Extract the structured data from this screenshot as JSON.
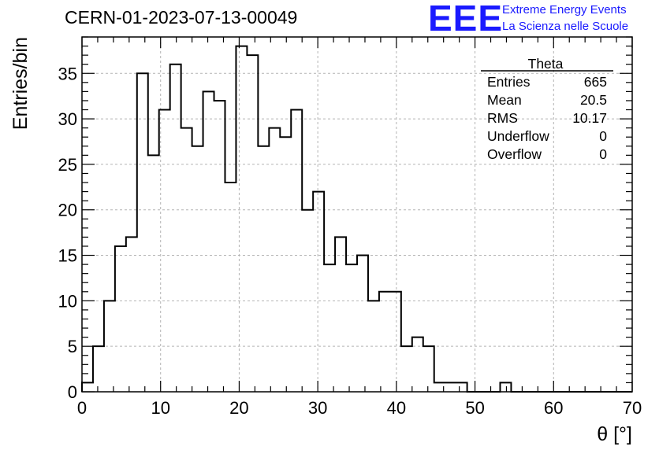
{
  "header": {
    "title": "CERN-01-2023-07-13-00049",
    "logo_text": "EEE",
    "logo_line1": "Extreme Energy Events",
    "logo_line2": "La Scienza nelle Scuole",
    "logo_color": "#1a1aff"
  },
  "stats_box": {
    "name": "Theta",
    "rows": [
      {
        "label": "Entries",
        "value": "665"
      },
      {
        "label": "Mean",
        "value": "20.5"
      },
      {
        "label": "RMS",
        "value": "10.17"
      },
      {
        "label": "Underflow",
        "value": "0"
      },
      {
        "label": "Overflow",
        "value": "0"
      }
    ]
  },
  "chart_data": {
    "type": "bar",
    "style": "step-histogram",
    "xlabel": "θ [°]",
    "ylabel": "Entries/bin",
    "xlim": [
      0,
      70
    ],
    "ylim": [
      0,
      39
    ],
    "grid": true,
    "line_color": "#000000",
    "grid_color": "#b3b3b3",
    "bin_width": 1.4,
    "x_tick_labels": [
      "0",
      "10",
      "20",
      "30",
      "40",
      "50",
      "60",
      "70"
    ],
    "y_tick_labels": [
      "0",
      "5",
      "10",
      "15",
      "20",
      "25",
      "30",
      "35"
    ],
    "x_ticks": [
      0,
      10,
      20,
      30,
      40,
      50,
      60,
      70
    ],
    "y_ticks": [
      0,
      5,
      10,
      15,
      20,
      25,
      30,
      35
    ],
    "values": [
      1,
      5,
      10,
      16,
      17,
      35,
      26,
      31,
      36,
      29,
      27,
      33,
      32,
      23,
      38,
      37,
      27,
      29,
      28,
      31,
      20,
      22,
      14,
      17,
      14,
      15,
      10,
      11,
      11,
      5,
      6,
      5,
      1,
      1,
      1,
      0,
      0,
      0,
      1,
      0,
      0,
      0,
      0,
      0,
      0,
      0,
      0,
      0,
      0,
      0
    ]
  }
}
